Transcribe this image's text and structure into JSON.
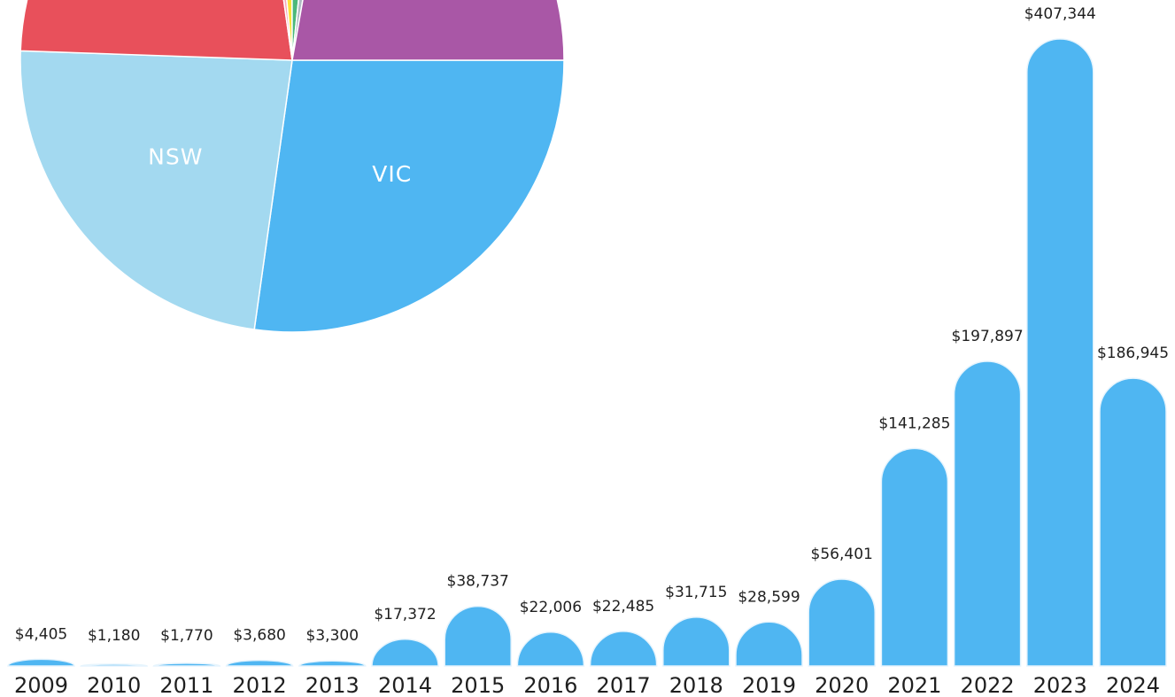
{
  "chart_data": [
    {
      "type": "pie",
      "categories": [
        "VIC",
        "NSW",
        null,
        null,
        null,
        null,
        null,
        null
      ],
      "values": [
        27.2,
        23.3,
        22.2,
        0.8,
        1.4,
        1.7,
        1.1,
        22.2
      ],
      "colors": [
        "#4fb6f2",
        "#a3d9f0",
        "#e8505b",
        "#f7a8b8",
        "#fde23a",
        "#4cb87a",
        "#b0bcc4",
        "#a957a6"
      ]
    },
    {
      "type": "bar",
      "categories": [
        "2009",
        "2010",
        "2011",
        "2012",
        "2013",
        "2014",
        "2015",
        "2016",
        "2017",
        "2018",
        "2019",
        "2020",
        "2021",
        "2022",
        "2023",
        "2024"
      ],
      "values": [
        4405,
        1180,
        1770,
        3680,
        3300,
        17372,
        38737,
        22006,
        22485,
        31715,
        28599,
        56401,
        141285,
        197897,
        407344,
        186945
      ],
      "value_labels": [
        "$4,405",
        "$1,180",
        "$1,770",
        "$3,680",
        "$3,300",
        "$17,372",
        "$38,737",
        "$22,006",
        "$22,485",
        "$31,715",
        "$28,599",
        "$56,401",
        "$141,285",
        "$197,897",
        "$407,344",
        "$186,945"
      ],
      "color": "#4fb6f2"
    }
  ]
}
